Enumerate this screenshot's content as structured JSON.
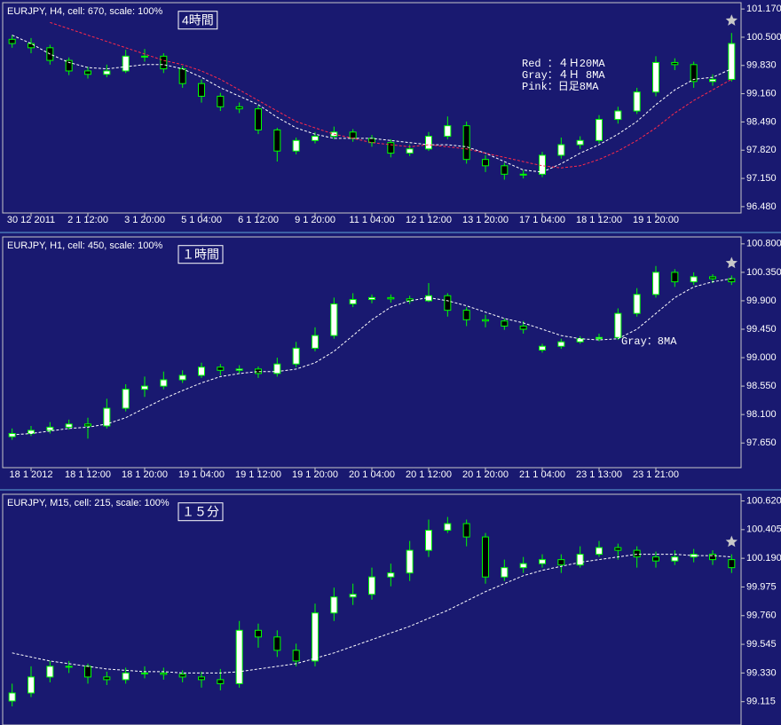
{
  "chart_data": [
    {
      "type": "candlestick",
      "title": "EURJPY, H4, cell: 670, scale: 100%",
      "label": "4時間",
      "annotations": [
        "Red ：４Ｈ20MA",
        "Gray：４Ｈ 8MA",
        "Pink：日足8MA"
      ],
      "up_color": "#ffffff",
      "down_color": "#000000",
      "wick_color": "#00ff00",
      "ylim": [
        96.33,
        101.32
      ],
      "yticks": [
        {
          "value": 101.17,
          "label": "101.170"
        },
        {
          "value": 100.5,
          "label": "100.500"
        },
        {
          "value": 99.83,
          "label": "99.830"
        },
        {
          "value": 99.16,
          "label": "99.160"
        },
        {
          "value": 98.49,
          "label": "98.490"
        },
        {
          "value": 97.82,
          "label": "97.820"
        },
        {
          "value": 97.15,
          "label": "97.150"
        },
        {
          "value": 96.48,
          "label": "96.480"
        }
      ],
      "categories": [
        null,
        "30 12 2011",
        null,
        null,
        "2 1 12:00",
        null,
        null,
        "3 1 20:00",
        null,
        null,
        "5 1 04:00",
        null,
        null,
        "6 1 12:00",
        null,
        null,
        "9 1 20:00",
        null,
        null,
        "11 1 04:00",
        null,
        null,
        "12 1 12:00",
        null,
        null,
        "13 1 20:00",
        null,
        null,
        "17 1 04:00",
        null,
        null,
        "18 1 12:00",
        null,
        null,
        "19 1 20:00",
        null,
        null,
        null,
        null
      ],
      "open": [
        100.45,
        100.35,
        100.25,
        99.95,
        99.7,
        99.62,
        99.7,
        100.05,
        100.05,
        99.75,
        99.4,
        99.1,
        98.85,
        98.8,
        98.3,
        97.8,
        98.05,
        98.15,
        98.25,
        98.1,
        98.0,
        97.75,
        97.85,
        98.15,
        98.4,
        97.6,
        97.45,
        97.25,
        97.25,
        97.7,
        97.95,
        98.05,
        98.55,
        98.75,
        99.2,
        99.9,
        99.85,
        99.45,
        99.5
      ],
      "high": [
        100.55,
        100.48,
        100.32,
        100.02,
        99.8,
        99.85,
        100.2,
        100.22,
        100.12,
        99.82,
        99.5,
        99.18,
        98.95,
        98.88,
        98.35,
        98.12,
        98.25,
        98.38,
        98.32,
        98.18,
        98.08,
        97.95,
        98.25,
        98.62,
        98.5,
        97.7,
        97.52,
        97.35,
        97.78,
        98.12,
        98.15,
        98.65,
        98.85,
        99.3,
        100.05,
        100.0,
        99.92,
        99.62,
        100.6
      ],
      "low": [
        100.25,
        100.12,
        99.85,
        99.6,
        99.52,
        99.55,
        99.65,
        99.92,
        99.65,
        99.3,
        98.95,
        98.75,
        98.7,
        98.2,
        97.55,
        97.72,
        97.98,
        98.08,
        98.02,
        97.9,
        97.65,
        97.68,
        97.8,
        98.08,
        97.5,
        97.3,
        97.12,
        97.15,
        97.18,
        97.62,
        97.85,
        97.98,
        98.45,
        98.68,
        99.1,
        99.72,
        99.3,
        99.35,
        99.45
      ],
      "close": [
        100.35,
        100.25,
        99.95,
        99.7,
        99.62,
        99.7,
        100.05,
        100.05,
        99.75,
        99.4,
        99.1,
        98.85,
        98.8,
        98.3,
        97.8,
        98.05,
        98.15,
        98.25,
        98.1,
        98.0,
        97.75,
        97.85,
        98.15,
        98.4,
        97.6,
        97.45,
        97.25,
        97.25,
        97.7,
        97.95,
        98.05,
        98.55,
        98.75,
        99.2,
        99.9,
        99.85,
        99.45,
        99.5,
        100.35
      ],
      "lines": [
        {
          "color": "#ffffff",
          "values": [
            100.55,
            100.35,
            100.1,
            99.9,
            99.78,
            99.75,
            99.8,
            99.85,
            99.85,
            99.75,
            99.55,
            99.3,
            99.1,
            98.9,
            98.6,
            98.35,
            98.2,
            98.1,
            98.1,
            98.1,
            98.05,
            98.0,
            97.95,
            97.95,
            97.9,
            97.75,
            97.55,
            97.35,
            97.3,
            97.5,
            97.75,
            97.95,
            98.2,
            98.5,
            98.9,
            99.25,
            99.5,
            99.55,
            99.75
          ]
        },
        {
          "color": "#ff2a4a",
          "values": [
            null,
            null,
            100.85,
            100.7,
            100.55,
            100.4,
            100.25,
            100.1,
            99.95,
            99.85,
            99.7,
            99.5,
            99.25,
            99.0,
            98.75,
            98.5,
            98.35,
            98.2,
            98.1,
            98.0,
            97.95,
            97.9,
            97.95,
            97.9,
            97.85,
            97.75,
            97.65,
            97.55,
            97.45,
            97.4,
            97.45,
            97.6,
            97.8,
            98.05,
            98.35,
            98.7,
            99.0,
            99.25,
            99.5
          ]
        }
      ]
    },
    {
      "type": "candlestick",
      "title": "EURJPY, H1, cell: 450, scale: 100%",
      "label": "１時間",
      "annotations": [
        "Gray：8MA"
      ],
      "up_color": "#ffffff",
      "down_color": "#000000",
      "wick_color": "#00ff00",
      "ylim": [
        97.26,
        100.91
      ],
      "yticks": [
        {
          "value": 100.8,
          "label": "100.800"
        },
        {
          "value": 100.35,
          "label": "100.350"
        },
        {
          "value": 99.9,
          "label": "99.900"
        },
        {
          "value": 99.45,
          "label": "99.450"
        },
        {
          "value": 99.0,
          "label": "99.000"
        },
        {
          "value": 98.55,
          "label": "98.550"
        },
        {
          "value": 98.1,
          "label": "98.100"
        },
        {
          "value": 97.65,
          "label": "97.650"
        }
      ],
      "categories": [
        null,
        "18 1 2012",
        null,
        null,
        "18 1 12:00",
        null,
        null,
        "18 1 20:00",
        null,
        null,
        "19 1 04:00",
        null,
        null,
        "19 1 12:00",
        null,
        null,
        "19 1 20:00",
        null,
        null,
        "20 1 04:00",
        null,
        null,
        "20 1 12:00",
        null,
        null,
        "20 1 20:00",
        null,
        null,
        "21 1 04:00",
        null,
        null,
        "23 1 13:00",
        null,
        null,
        "23 1 21:00",
        null,
        null,
        null,
        null
      ],
      "open": [
        97.75,
        97.8,
        97.85,
        97.9,
        97.95,
        97.92,
        98.2,
        98.5,
        98.55,
        98.65,
        98.72,
        98.85,
        98.8,
        98.82,
        98.75,
        98.9,
        99.15,
        99.35,
        99.85,
        99.92,
        99.95,
        99.93,
        99.9,
        99.98,
        99.75,
        99.6,
        99.58,
        99.5,
        99.12,
        99.18,
        99.25,
        99.3,
        99.32,
        99.7,
        100.0,
        100.35,
        100.2,
        100.28,
        100.25
      ],
      "high": [
        97.88,
        97.92,
        97.98,
        98.02,
        98.05,
        98.35,
        98.58,
        98.7,
        98.78,
        98.8,
        98.92,
        98.9,
        98.88,
        98.86,
        99.0,
        99.25,
        99.48,
        99.95,
        100.02,
        100.0,
        100.0,
        99.98,
        100.18,
        100.02,
        99.8,
        99.68,
        99.62,
        99.58,
        99.22,
        99.3,
        99.34,
        99.38,
        99.78,
        100.1,
        100.45,
        100.4,
        100.35,
        100.32,
        100.3
      ],
      "low": [
        97.7,
        97.76,
        97.8,
        97.86,
        97.72,
        97.88,
        98.15,
        98.38,
        98.5,
        98.6,
        98.68,
        98.72,
        98.74,
        98.68,
        98.7,
        98.85,
        99.1,
        99.3,
        99.8,
        99.86,
        99.87,
        99.85,
        99.88,
        99.65,
        99.5,
        99.48,
        99.44,
        99.38,
        99.08,
        99.14,
        99.22,
        99.26,
        99.28,
        99.65,
        99.95,
        100.12,
        100.15,
        100.18,
        100.15
      ],
      "close": [
        97.8,
        97.85,
        97.9,
        97.95,
        97.92,
        98.2,
        98.5,
        98.55,
        98.65,
        98.72,
        98.85,
        98.8,
        98.82,
        98.75,
        98.9,
        99.15,
        99.35,
        99.85,
        99.92,
        99.95,
        99.93,
        99.9,
        99.98,
        99.75,
        99.6,
        99.58,
        99.5,
        99.45,
        99.18,
        99.25,
        99.3,
        99.32,
        99.7,
        100.0,
        100.35,
        100.2,
        100.28,
        100.25,
        100.2
      ],
      "lines": [
        {
          "color": "#ffffff",
          "values": [
            97.78,
            97.8,
            97.84,
            97.88,
            97.9,
            97.95,
            98.05,
            98.2,
            98.35,
            98.48,
            98.6,
            98.7,
            98.75,
            98.78,
            98.78,
            98.82,
            98.92,
            99.1,
            99.35,
            99.6,
            99.8,
            99.9,
            99.95,
            99.9,
            99.82,
            99.72,
            99.62,
            99.55,
            99.45,
            99.35,
            99.3,
            99.28,
            99.3,
            99.45,
            99.7,
            99.95,
            100.12,
            100.2,
            100.25
          ]
        }
      ]
    },
    {
      "type": "candlestick",
      "title": "EURJPY, M15, cell: 215, scale: 100%",
      "label": "１５分",
      "up_color": "#ffffff",
      "down_color": "#000000",
      "wick_color": "#00ff00",
      "ylim": [
        98.94,
        100.67
      ],
      "yticks": [
        {
          "value": 100.62,
          "label": "100.620"
        },
        {
          "value": 100.405,
          "label": "100.405"
        },
        {
          "value": 100.19,
          "label": "100.190"
        },
        {
          "value": 99.975,
          "label": "99.975"
        },
        {
          "value": 99.76,
          "label": "99.760"
        },
        {
          "value": 99.545,
          "label": "99.545"
        },
        {
          "value": 99.33,
          "label": "99.330"
        },
        {
          "value": 99.115,
          "label": "99.115"
        }
      ],
      "open": [
        99.12,
        99.18,
        99.3,
        99.38,
        99.38,
        99.3,
        99.28,
        99.33,
        99.33,
        99.32,
        99.3,
        99.28,
        99.25,
        99.65,
        99.6,
        99.5,
        99.42,
        99.78,
        99.9,
        99.92,
        100.05,
        100.08,
        100.25,
        100.4,
        100.45,
        100.35,
        100.05,
        100.12,
        100.15,
        100.18,
        100.14,
        100.22,
        100.27,
        100.25,
        100.2,
        100.17,
        100.2,
        100.22,
        100.18
      ],
      "high": [
        99.25,
        99.38,
        99.42,
        99.42,
        99.4,
        99.34,
        99.37,
        99.38,
        99.37,
        99.35,
        99.34,
        99.36,
        99.72,
        99.7,
        99.65,
        99.55,
        99.85,
        99.97,
        100.0,
        100.12,
        100.15,
        100.32,
        100.48,
        100.5,
        100.48,
        100.38,
        100.18,
        100.2,
        100.22,
        100.22,
        100.28,
        100.32,
        100.3,
        100.28,
        100.24,
        100.25,
        100.26,
        100.25,
        100.22
      ],
      "low": [
        99.08,
        99.15,
        99.26,
        99.33,
        99.25,
        99.24,
        99.25,
        99.29,
        99.28,
        99.26,
        99.22,
        99.2,
        99.22,
        99.52,
        99.45,
        99.38,
        99.38,
        99.72,
        99.84,
        99.88,
        99.98,
        100.02,
        100.2,
        100.38,
        100.28,
        100.0,
        100.02,
        100.08,
        100.12,
        100.08,
        100.12,
        100.2,
        100.18,
        100.12,
        100.12,
        100.14,
        100.16,
        100.14,
        100.08
      ],
      "close": [
        99.18,
        99.3,
        99.38,
        99.38,
        99.3,
        99.28,
        99.33,
        99.33,
        99.32,
        99.3,
        99.28,
        99.25,
        99.65,
        99.6,
        99.5,
        99.42,
        99.78,
        99.9,
        99.92,
        100.05,
        100.08,
        100.25,
        100.4,
        100.45,
        100.35,
        100.05,
        100.12,
        100.15,
        100.18,
        100.14,
        100.22,
        100.27,
        100.25,
        100.2,
        100.17,
        100.2,
        100.22,
        100.18,
        100.12
      ],
      "lines": [
        {
          "color": "#ffffff",
          "values": [
            99.48,
            99.45,
            99.42,
            99.4,
            99.38,
            99.36,
            99.35,
            99.34,
            99.34,
            99.33,
            99.33,
            99.33,
            99.34,
            99.36,
            99.38,
            99.4,
            99.44,
            99.48,
            99.53,
            99.58,
            99.63,
            99.68,
            99.74,
            99.8,
            99.87,
            99.94,
            100.0,
            100.06,
            100.1,
            100.13,
            100.16,
            100.18,
            100.2,
            100.22,
            100.22,
            100.22,
            100.21,
            100.21,
            100.2
          ]
        }
      ]
    }
  ]
}
